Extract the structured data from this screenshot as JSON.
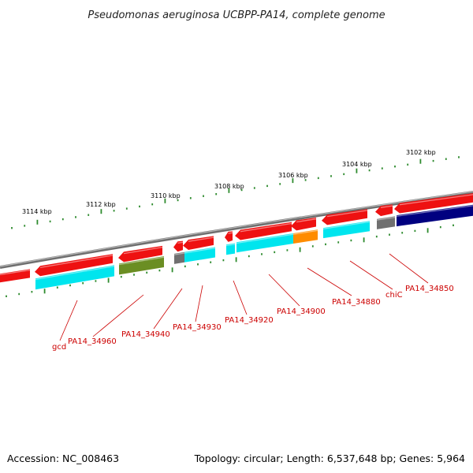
{
  "title": "Pseudomonas aeruginosa UCBPP-PA14, complete genome",
  "footer": {
    "accession": "Accession: NC_008463",
    "topology": "Topology: circular; Length: 6,537,648 bp; Genes: 5,964"
  },
  "colors": {
    "forward_cds": "#ee1111",
    "backbone": "#808080",
    "tick": "#2e8b2e",
    "label": "#cc0000",
    "cyan": "#00e5ee",
    "olive": "#6b8e23",
    "orange": "#ff8c00",
    "gray": "#707070",
    "navy": "#000080"
  },
  "scale_labels": [
    "3114 kbp",
    "3112 kbp",
    "3110 kbp",
    "3108 kbp",
    "3106 kbp",
    "3104 kbp",
    "3102 kbp"
  ],
  "gene_labels": [
    "gcd",
    "PA14_34960",
    "PA14_34940",
    "PA14_34930",
    "PA14_34920",
    "PA14_34900",
    "PA14_34880",
    "chiC",
    "PA14_34850"
  ]
}
